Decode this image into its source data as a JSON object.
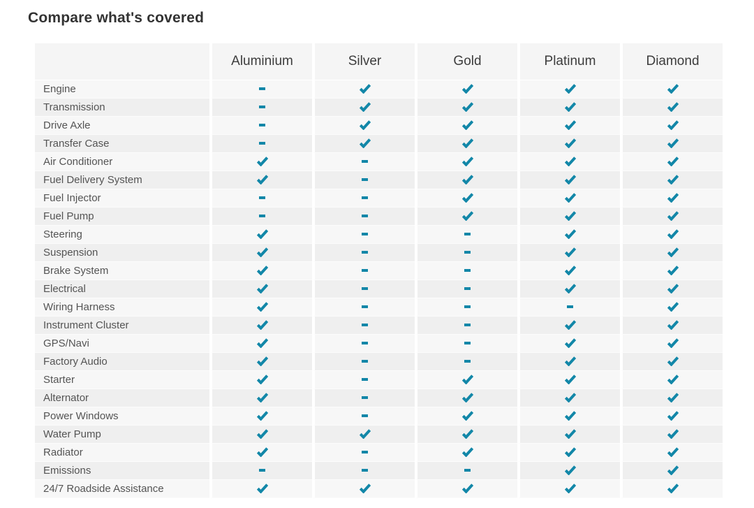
{
  "page": {
    "title": "Compare what's covered"
  },
  "colors": {
    "accent": "#1287a8",
    "row_odd_bg": "#f7f7f7",
    "row_even_bg": "#efefef",
    "header_bg": "#f5f5f5",
    "title_text": "#333333",
    "header_text": "#3d3d3d",
    "label_text": "#545454"
  },
  "icons": {
    "covered": "check-icon",
    "not_covered": "dash-icon"
  },
  "table": {
    "plans": [
      "Aluminium",
      "Silver",
      "Gold",
      "Platinum",
      "Diamond"
    ],
    "rows": [
      {
        "label": "Engine",
        "coverage": [
          "dash",
          "check",
          "check",
          "check",
          "check"
        ]
      },
      {
        "label": "Transmission",
        "coverage": [
          "dash",
          "check",
          "check",
          "check",
          "check"
        ]
      },
      {
        "label": "Drive Axle",
        "coverage": [
          "dash",
          "check",
          "check",
          "check",
          "check"
        ]
      },
      {
        "label": "Transfer Case",
        "coverage": [
          "dash",
          "check",
          "check",
          "check",
          "check"
        ]
      },
      {
        "label": "Air Conditioner",
        "coverage": [
          "check",
          "dash",
          "check",
          "check",
          "check"
        ]
      },
      {
        "label": "Fuel Delivery System",
        "coverage": [
          "check",
          "dash",
          "check",
          "check",
          "check"
        ]
      },
      {
        "label": "Fuel Injector",
        "coverage": [
          "dash",
          "dash",
          "check",
          "check",
          "check"
        ]
      },
      {
        "label": "Fuel Pump",
        "coverage": [
          "dash",
          "dash",
          "check",
          "check",
          "check"
        ]
      },
      {
        "label": "Steering",
        "coverage": [
          "check",
          "dash",
          "dash",
          "check",
          "check"
        ]
      },
      {
        "label": "Suspension",
        "coverage": [
          "check",
          "dash",
          "dash",
          "check",
          "check"
        ]
      },
      {
        "label": "Brake System",
        "coverage": [
          "check",
          "dash",
          "dash",
          "check",
          "check"
        ]
      },
      {
        "label": "Electrical",
        "coverage": [
          "check",
          "dash",
          "dash",
          "check",
          "check"
        ]
      },
      {
        "label": "Wiring Harness",
        "coverage": [
          "check",
          "dash",
          "dash",
          "dash",
          "check"
        ]
      },
      {
        "label": "Instrument Cluster",
        "coverage": [
          "check",
          "dash",
          "dash",
          "check",
          "check"
        ]
      },
      {
        "label": "GPS/Navi",
        "coverage": [
          "check",
          "dash",
          "dash",
          "check",
          "check"
        ]
      },
      {
        "label": "Factory Audio",
        "coverage": [
          "check",
          "dash",
          "dash",
          "check",
          "check"
        ]
      },
      {
        "label": "Starter",
        "coverage": [
          "check",
          "dash",
          "check",
          "check",
          "check"
        ]
      },
      {
        "label": "Alternator",
        "coverage": [
          "check",
          "dash",
          "check",
          "check",
          "check"
        ]
      },
      {
        "label": "Power Windows",
        "coverage": [
          "check",
          "dash",
          "check",
          "check",
          "check"
        ]
      },
      {
        "label": "Water Pump",
        "coverage": [
          "check",
          "check",
          "check",
          "check",
          "check"
        ]
      },
      {
        "label": "Radiator",
        "coverage": [
          "check",
          "dash",
          "check",
          "check",
          "check"
        ]
      },
      {
        "label": "Emissions",
        "coverage": [
          "dash",
          "dash",
          "dash",
          "check",
          "check"
        ]
      },
      {
        "label": "24/7 Roadside Assistance",
        "coverage": [
          "check",
          "check",
          "check",
          "check",
          "check"
        ]
      }
    ]
  }
}
